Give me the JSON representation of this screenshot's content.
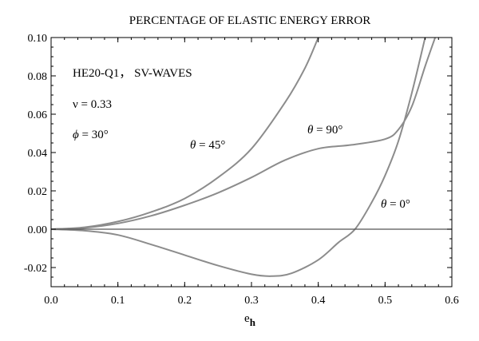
{
  "chart_data": {
    "type": "line",
    "title": "PERCENTAGE OF ELASTIC ENERGY ERROR",
    "xlabel": "e",
    "xlabel_sub": "h",
    "ylabel": "",
    "xlim": [
      0.0,
      0.6
    ],
    "ylim": [
      -0.03,
      0.1
    ],
    "x_ticks": [
      0.0,
      0.1,
      0.2,
      0.3,
      0.4,
      0.5,
      0.6
    ],
    "x_tick_labels": [
      "0.0",
      "0.1",
      "0.2",
      "0.3",
      "0.4",
      "0.5",
      "0.6"
    ],
    "y_ticks": [
      -0.02,
      0.0,
      0.02,
      0.04,
      0.06,
      0.08,
      0.1
    ],
    "y_tick_labels": [
      "-0.02",
      "0.00",
      "0.02",
      "0.04",
      "0.06",
      "0.08",
      "0.10"
    ],
    "grid": false,
    "series_color": "#8c8c8c",
    "annotations": {
      "element_line": "HE20-Q1， SV-WAVES",
      "nu_line": "ν = 0.33",
      "phi_symbol": "ϕ",
      "phi_value": " = 30°"
    },
    "series": [
      {
        "label": "θ = 45°",
        "label_symbol": "θ",
        "label_value": " = 45°",
        "x": [
          0.0,
          0.05,
          0.1,
          0.15,
          0.2,
          0.25,
          0.3,
          0.35,
          0.38,
          0.4
        ],
        "y": [
          0.0,
          0.001,
          0.004,
          0.009,
          0.016,
          0.027,
          0.042,
          0.066,
          0.084,
          0.1
        ]
      },
      {
        "label": "θ = 90°",
        "label_symbol": "θ",
        "label_value": " = 90°",
        "x": [
          0.0,
          0.05,
          0.1,
          0.15,
          0.2,
          0.25,
          0.3,
          0.35,
          0.4,
          0.45,
          0.5,
          0.52,
          0.54,
          0.56,
          0.575
        ],
        "y": [
          0.0,
          0.0007,
          0.003,
          0.007,
          0.0125,
          0.019,
          0.027,
          0.036,
          0.042,
          0.044,
          0.047,
          0.052,
          0.064,
          0.085,
          0.1
        ]
      },
      {
        "label": "θ = 0°",
        "label_symbol": "θ",
        "label_value": " = 0°",
        "x": [
          0.0,
          0.05,
          0.1,
          0.15,
          0.2,
          0.25,
          0.3,
          0.33,
          0.36,
          0.4,
          0.43,
          0.455,
          0.48,
          0.5,
          0.52,
          0.54,
          0.56
        ],
        "y": [
          0.0,
          -0.0008,
          -0.003,
          -0.008,
          -0.0135,
          -0.019,
          -0.0235,
          -0.0245,
          -0.023,
          -0.016,
          -0.007,
          0.0,
          0.014,
          0.028,
          0.046,
          0.071,
          0.1
        ]
      }
    ]
  }
}
